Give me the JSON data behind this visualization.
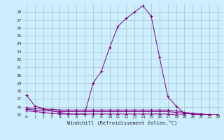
{
  "xlabel": "Windchill (Refroidissement éolien,°C)",
  "x": [
    0,
    1,
    2,
    3,
    4,
    5,
    6,
    7,
    8,
    9,
    10,
    11,
    12,
    13,
    14,
    15,
    16,
    17,
    18,
    19,
    20,
    21,
    22,
    23
  ],
  "y_main": [
    17.5,
    16.1,
    15.8,
    15.5,
    15.3,
    15.1,
    15.1,
    15.1,
    19.0,
    20.5,
    23.5,
    26.2,
    27.2,
    28.0,
    28.8,
    27.5,
    22.3,
    17.3,
    16.1,
    15.2,
    15.1,
    15.1,
    15.0,
    15.0
  ],
  "y_flat1": [
    15.9,
    15.8,
    15.7,
    15.7,
    15.6,
    15.6,
    15.6,
    15.6,
    15.6,
    15.6,
    15.6,
    15.6,
    15.6,
    15.6,
    15.6,
    15.6,
    15.6,
    15.6,
    15.5,
    15.3,
    15.2,
    15.1,
    15.0,
    15.0
  ],
  "y_flat2": [
    15.7,
    15.6,
    15.5,
    15.5,
    15.4,
    15.4,
    15.4,
    15.4,
    15.4,
    15.4,
    15.4,
    15.4,
    15.4,
    15.4,
    15.4,
    15.4,
    15.4,
    15.4,
    15.3,
    15.2,
    15.1,
    15.0,
    15.0,
    14.9
  ],
  "y_flat3": [
    15.5,
    15.4,
    15.3,
    15.2,
    15.1,
    15.1,
    15.1,
    15.1,
    15.1,
    15.1,
    15.1,
    15.1,
    15.1,
    15.1,
    15.1,
    15.1,
    15.1,
    15.1,
    15.0,
    15.0,
    14.9,
    14.9,
    14.9,
    14.8
  ],
  "line_color": "#800080",
  "bg_color": "#cceeff",
  "grid_color": "#aacccc",
  "ylim": [
    15,
    29
  ],
  "xlim": [
    -0.5,
    23.5
  ],
  "yticks": [
    15,
    16,
    17,
    18,
    19,
    20,
    21,
    22,
    23,
    24,
    25,
    26,
    27,
    28
  ],
  "xticks": [
    0,
    1,
    2,
    3,
    4,
    5,
    6,
    7,
    8,
    9,
    10,
    11,
    12,
    13,
    14,
    15,
    16,
    17,
    18,
    19,
    20,
    21,
    22,
    23
  ]
}
